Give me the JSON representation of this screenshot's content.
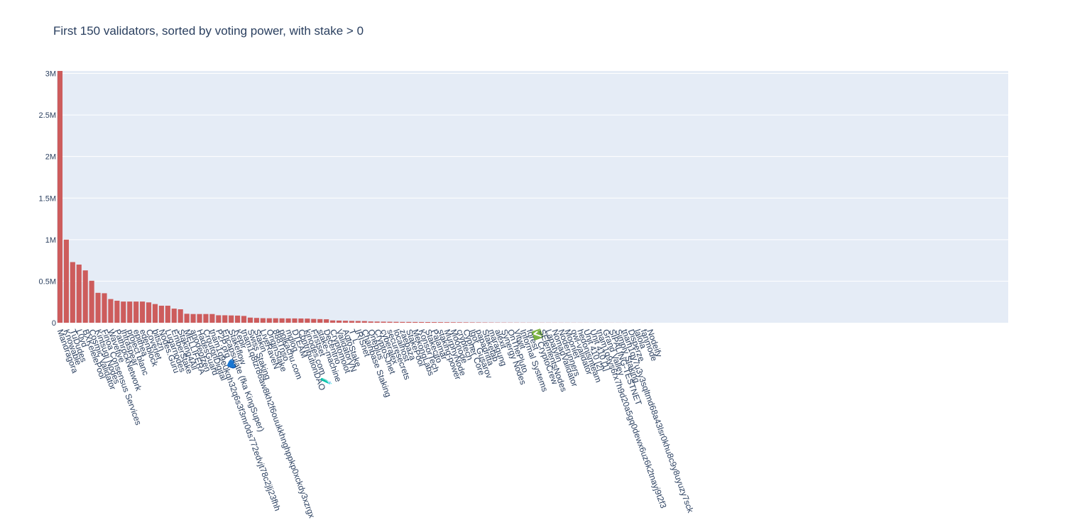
{
  "chart_data": {
    "type": "bar",
    "title": "First 150 validators, sorted by voting power, with stake > 0",
    "xlabel": "",
    "ylabel": "",
    "ylim": [
      0,
      3030000
    ],
    "yticks": [
      {
        "value": 0,
        "label": "0"
      },
      {
        "value": 500000,
        "label": "0.5M"
      },
      {
        "value": 1000000,
        "label": "1M"
      },
      {
        "value": 1500000,
        "label": "1.5M"
      },
      {
        "value": 2000000,
        "label": "2M"
      },
      {
        "value": 2500000,
        "label": "2.5M"
      },
      {
        "value": 3000000,
        "label": "3M"
      }
    ],
    "grid": true,
    "legend": "none",
    "colors": {
      "bar": "#cd5c5c",
      "plot_bg": "#e5ecf6",
      "grid": "#ffffff",
      "text": "#2a3f5f"
    },
    "categories": [
      "Mandragora",
      "Knowable",
      "TuDudes",
      "L0vd",
      "BXKelelePool",
      "Cosmic Validator",
      "Kintsugi Nodes",
      "Finoa Consensus Services",
      "Wavefive",
      "PathrockNetwork",
      "Infraspear",
      "project blanc",
      "epithea",
      "edenblock",
      "Coverlet",
      "bitszn",
      "Nodes.Guru",
      "Lugarnodes",
      "EmberStake",
      "Staking4All",
      "MELLIFERA",
      "anodeofzen",
      "HadesGuard",
      "CroutonDigital",
      "tnam1q9e0kqh32q6s3f3mr0ds772edvjt78c2jlj23fhh",
      "P2P.org 💙",
      "Encapsulate (fka KingSuper)",
      "Stakeflow",
      "Keplr",
      "tnam1q8tzr86aw8kh2f6ouukkhnghppkp0xckdy3xzrgx",
      "Swiss Staking",
      "Stakin",
      "LiveRaveN",
      "OriginStake",
      "888Tnso",
      "polkachu.com",
      "mdlog",
      "DTEAM",
      "ContributionDAO",
      "kjnodes.com 🧪",
      "Firstset",
      "stake-machine",
      "Decentrio",
      "Cryptomolot",
      "ValidatorVN",
      "AutoStake",
      "T_L",
      "IRISnet",
      "Chainbase Staking",
      "Oneplus",
      "CryptoSJnet",
      "cyberalex",
      "securesecrets",
      "localhost",
      "zaebaza",
      "StakePool",
      "MekongLabs",
      "KonsorTech",
      "Stakecito",
      "Palamar",
      "staking-power",
      "MurphyNode",
      "Moonode",
      "cryptech",
      "Cypher Core",
      "Igor_Gusarov",
      "papadritta",
      "Staketab",
      "maragung",
      "alexit",
      "Synergy Nodes",
      "OnThePluto",
      "Vitwit",
      "Informal Systems",
      "forest",
      "✅ CryptoCrew",
      "SElementsNodes",
      "Lapatylin",
      "NomadValidator",
      "Noderunners",
      "Moonlet",
      "owl-validator",
      "hedonismteam",
      "Unit 410 [2]",
      "Unit 410 [1]",
      "tnam1q9ys6rx7h9d20a5gq0dewx6uz6k2tnayj9t2f3",
      "Grand Valley",
      "SIPALING-TESTNET",
      "Simply Staking",
      "tnam1qy7u3y3sqltmd68a43lsr0khu8c9y8uyuzy7sck",
      "Disperze",
      "lalola",
      "fanmode",
      "Nodeify"
    ],
    "values": [
      3030000,
      1000000,
      730000,
      700000,
      630000,
      505000,
      360000,
      355000,
      285000,
      265000,
      255000,
      255000,
      255000,
      255000,
      245000,
      225000,
      205000,
      205000,
      170000,
      162000,
      108000,
      105000,
      105000,
      105000,
      105000,
      90000,
      90000,
      88000,
      86000,
      82000,
      62000,
      58000,
      55000,
      54000,
      54000,
      53000,
      52000,
      52000,
      51000,
      50000,
      46000,
      44000,
      42000,
      28000,
      26000,
      24000,
      22000,
      21000,
      20000,
      15000,
      14000,
      13000,
      12000,
      11000,
      10000,
      10000,
      9500,
      9000,
      8500,
      8000,
      7500,
      7000,
      6500,
      6000,
      5500,
      5000,
      4500,
      4000,
      3500,
      3000,
      2800,
      2500,
      2300,
      2000,
      1900,
      1800,
      1700,
      1600,
      1500,
      1400,
      1300,
      1200,
      1100,
      1000,
      900,
      850,
      800,
      750,
      700,
      650,
      600,
      550,
      500,
      450
    ]
  }
}
